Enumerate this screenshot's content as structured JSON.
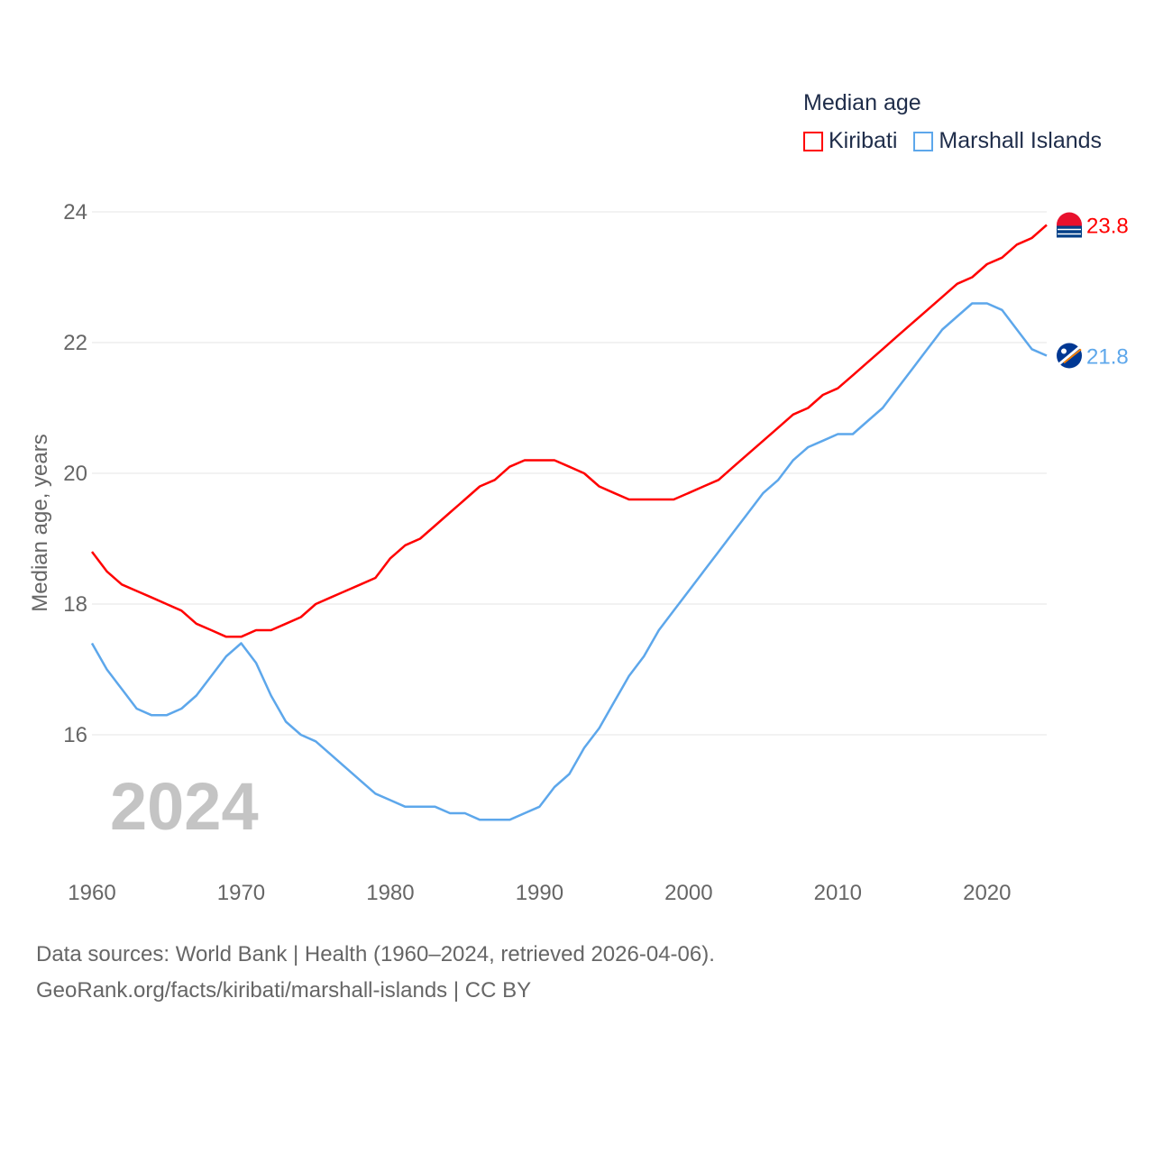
{
  "chart_data": {
    "type": "line",
    "title": "Median age",
    "ylabel": "Median age, years",
    "xlabel": "",
    "ylim": [
      14.2,
      24.5
    ],
    "xlim": [
      1960,
      2024
    ],
    "yticks": [
      16,
      18,
      20,
      22,
      24
    ],
    "xticks": [
      1960,
      1970,
      1980,
      1990,
      2000,
      2010,
      2020
    ],
    "grid": true,
    "legend_position": "top-right",
    "year_overlay": "2024",
    "x": [
      1960,
      1961,
      1962,
      1963,
      1964,
      1965,
      1966,
      1967,
      1968,
      1969,
      1970,
      1971,
      1972,
      1973,
      1974,
      1975,
      1976,
      1977,
      1978,
      1979,
      1980,
      1981,
      1982,
      1983,
      1984,
      1985,
      1986,
      1987,
      1988,
      1989,
      1990,
      1991,
      1992,
      1993,
      1994,
      1995,
      1996,
      1997,
      1998,
      1999,
      2000,
      2001,
      2002,
      2003,
      2004,
      2005,
      2006,
      2007,
      2008,
      2009,
      2010,
      2011,
      2012,
      2013,
      2014,
      2015,
      2016,
      2017,
      2018,
      2019,
      2020,
      2021,
      2022,
      2023,
      2024
    ],
    "series": [
      {
        "name": "Kiribati",
        "color": "#ff0000",
        "end_label": "23.8",
        "values": [
          18.8,
          18.5,
          18.3,
          18.2,
          18.1,
          18.0,
          17.9,
          17.7,
          17.6,
          17.5,
          17.5,
          17.6,
          17.6,
          17.7,
          17.8,
          18.0,
          18.1,
          18.2,
          18.3,
          18.4,
          18.7,
          18.9,
          19.0,
          19.2,
          19.4,
          19.6,
          19.8,
          19.9,
          20.1,
          20.2,
          20.2,
          20.2,
          20.1,
          20.0,
          19.8,
          19.7,
          19.6,
          19.6,
          19.6,
          19.6,
          19.7,
          19.8,
          19.9,
          20.1,
          20.3,
          20.5,
          20.7,
          20.9,
          21.0,
          21.2,
          21.3,
          21.5,
          21.7,
          21.9,
          22.1,
          22.3,
          22.5,
          22.7,
          22.9,
          23.0,
          23.2,
          23.3,
          23.5,
          23.6,
          23.8
        ]
      },
      {
        "name": "Marshall Islands",
        "color": "#5da7eb",
        "end_label": "21.8",
        "values": [
          17.4,
          17.0,
          16.7,
          16.4,
          16.3,
          16.3,
          16.4,
          16.6,
          16.9,
          17.2,
          17.4,
          17.1,
          16.6,
          16.2,
          16.0,
          15.9,
          15.7,
          15.5,
          15.3,
          15.1,
          15.0,
          14.9,
          14.9,
          14.9,
          14.8,
          14.8,
          14.7,
          14.7,
          14.7,
          14.8,
          14.9,
          15.2,
          15.4,
          15.8,
          16.1,
          16.5,
          16.9,
          17.2,
          17.6,
          17.9,
          18.2,
          18.5,
          18.8,
          19.1,
          19.4,
          19.7,
          19.9,
          20.2,
          20.4,
          20.5,
          20.6,
          20.6,
          20.8,
          21.0,
          21.3,
          21.6,
          21.9,
          22.2,
          22.4,
          22.6,
          22.6,
          22.5,
          22.2,
          21.9,
          21.8
        ]
      }
    ]
  },
  "footer": {
    "line1": "Data sources: World Bank | Health (1960–2024, retrieved 2026-04-06).",
    "line2": "GeoRank.org/facts/kiribati/marshall-islands | CC BY"
  }
}
